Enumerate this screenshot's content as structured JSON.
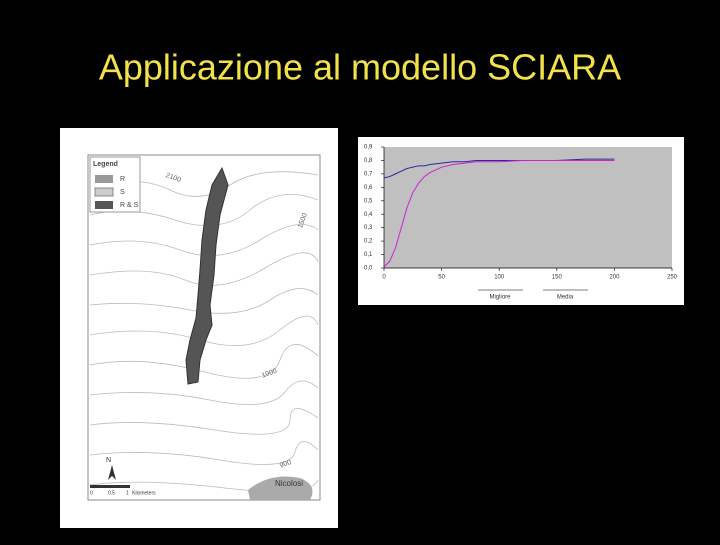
{
  "title": "Applicazione al modello SCIARA",
  "map": {
    "legend_title": "Legend",
    "legend_items": [
      "R",
      "S",
      "R & S"
    ],
    "contour_labels": [
      "2100",
      "1500",
      "1000",
      "900"
    ],
    "place_label": "Nicolosi",
    "north_label": "N",
    "scale_labels": [
      "0",
      "0.5",
      "1",
      "Kilometers"
    ]
  },
  "chart_data": {
    "type": "line",
    "x": [
      0,
      5,
      10,
      15,
      20,
      25,
      30,
      35,
      40,
      50,
      60,
      70,
      80,
      100,
      120,
      150,
      175,
      200
    ],
    "series": [
      {
        "name": "Migliore",
        "color": "#2a2a9a",
        "values": [
          0.67,
          0.68,
          0.7,
          0.72,
          0.74,
          0.75,
          0.76,
          0.76,
          0.77,
          0.78,
          0.79,
          0.79,
          0.8,
          0.8,
          0.8,
          0.8,
          0.81,
          0.81
        ]
      },
      {
        "name": "Media",
        "color": "#d020d0",
        "values": [
          0.01,
          0.05,
          0.15,
          0.3,
          0.45,
          0.56,
          0.63,
          0.68,
          0.71,
          0.75,
          0.77,
          0.78,
          0.79,
          0.79,
          0.8,
          0.8,
          0.8,
          0.8
        ]
      }
    ],
    "xlim": [
      0,
      250
    ],
    "ylim": [
      0,
      0.9
    ],
    "xticks": [
      0,
      50,
      100,
      150,
      200,
      250
    ],
    "yticks": [
      {
        "value": 0,
        "label": "0,0"
      },
      {
        "value": 0.1,
        "label": "0,1"
      },
      {
        "value": 0.2,
        "label": "0,2"
      },
      {
        "value": 0.3,
        "label": "0,3"
      },
      {
        "value": 0.4,
        "label": "0,4"
      },
      {
        "value": 0.5,
        "label": "0,5"
      },
      {
        "value": 0.6,
        "label": "0,6"
      },
      {
        "value": 0.7,
        "label": "0,7"
      },
      {
        "value": 0.8,
        "label": "0,8"
      },
      {
        "value": 0.9,
        "label": "0,9"
      }
    ],
    "grid": false,
    "plot_background": "#c0c0c0"
  }
}
